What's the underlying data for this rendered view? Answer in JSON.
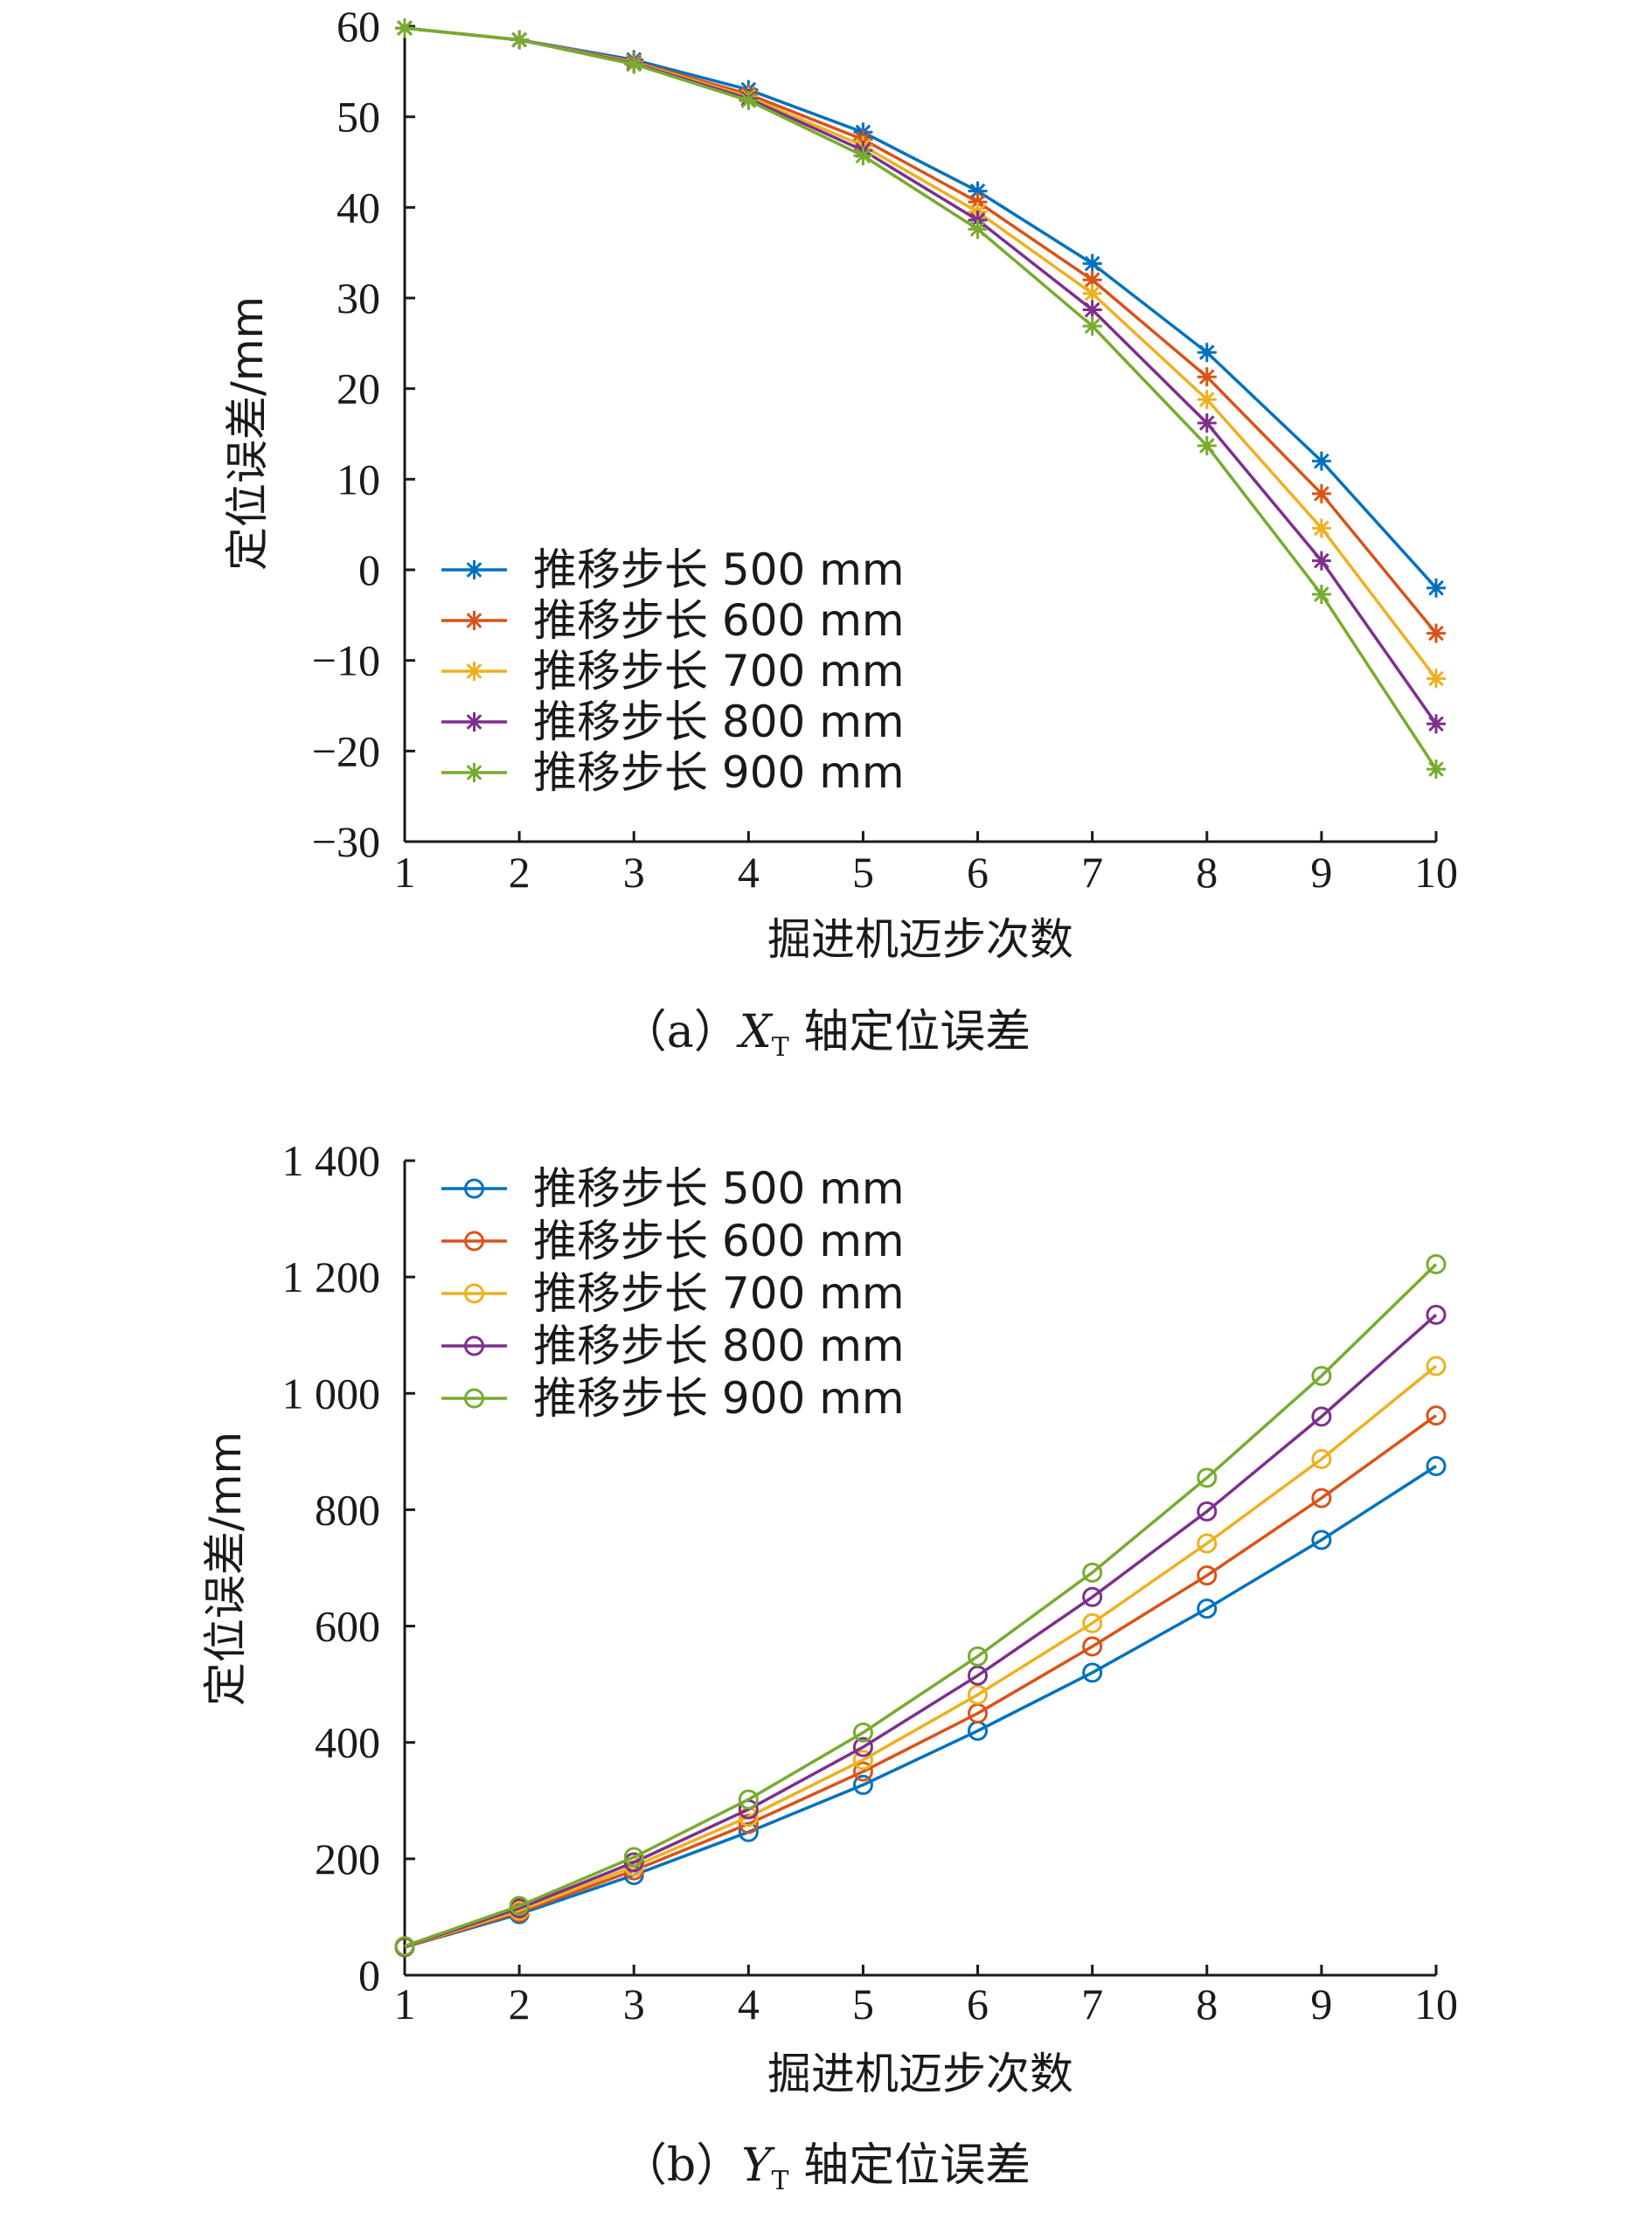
{
  "chart_data": [
    {
      "type": "line",
      "marker": "asterisk",
      "caption": {
        "prefix": "（a）",
        "var": "X",
        "sub": "T",
        "suffix": " 轴定位误差"
      },
      "xlabel": "掘进机迈步次数",
      "ylabel": "定位误差/mm",
      "xlim": [
        1,
        10
      ],
      "ylim": [
        -30,
        60
      ],
      "x_ticks": [
        "1",
        "2",
        "3",
        "4",
        "5",
        "6",
        "7",
        "8",
        "9",
        "10"
      ],
      "y_ticks": [
        "−30",
        "−20",
        "−10",
        "0",
        "10",
        "20",
        "30",
        "40",
        "50",
        "60"
      ],
      "legend_position": "lower-left",
      "x": [
        1,
        2,
        3,
        4,
        5,
        6,
        7,
        8,
        9,
        10
      ],
      "series": [
        {
          "name": "推移步长 500 mm",
          "color": "#0072BD",
          "values": [
            59.8,
            58.5,
            56.3,
            53.0,
            48.3,
            41.8,
            33.8,
            24.0,
            12.0,
            -2.0
          ]
        },
        {
          "name": "推移步长 600 mm",
          "color": "#D95319",
          "values": [
            59.8,
            58.5,
            56.1,
            52.5,
            47.5,
            40.6,
            32.0,
            21.3,
            8.4,
            -7.0
          ]
        },
        {
          "name": "推移步长 700 mm",
          "color": "#EDB120",
          "values": [
            59.8,
            58.5,
            56.0,
            52.2,
            46.8,
            39.5,
            30.5,
            18.8,
            4.6,
            -12.0
          ]
        },
        {
          "name": "推移步长 800 mm",
          "color": "#7E2F8E",
          "values": [
            59.8,
            58.5,
            55.9,
            52.0,
            46.3,
            38.6,
            28.7,
            16.2,
            1.0,
            -17.0
          ]
        },
        {
          "name": "推移步长 900 mm",
          "color": "#77AC30",
          "values": [
            59.8,
            58.5,
            55.8,
            51.8,
            45.7,
            37.6,
            26.9,
            13.7,
            -2.7,
            -22.0
          ]
        }
      ]
    },
    {
      "type": "line",
      "marker": "circle",
      "caption": {
        "prefix": "（b）",
        "var": "Y",
        "sub": "T",
        "suffix": " 轴定位误差"
      },
      "xlabel": "掘进机迈步次数",
      "ylabel": "定位误差/mm",
      "xlim": [
        1,
        10
      ],
      "ylim": [
        0,
        1400
      ],
      "x_ticks": [
        "1",
        "2",
        "3",
        "4",
        "5",
        "6",
        "7",
        "8",
        "9",
        "10"
      ],
      "y_ticks": [
        "0",
        "200",
        "400",
        "600",
        "800",
        "1 000",
        "1 200",
        "1 400"
      ],
      "legend_position": "upper-left",
      "x": [
        1,
        2,
        3,
        4,
        5,
        6,
        7,
        8,
        9,
        10
      ],
      "series": [
        {
          "name": "推移步长 500 mm",
          "color": "#0072BD",
          "values": [
            48,
            105,
            172,
            246,
            327,
            420,
            520,
            630,
            748,
            875
          ]
        },
        {
          "name": "推移步长 600 mm",
          "color": "#D95319",
          "values": [
            48,
            108,
            180,
            260,
            350,
            450,
            565,
            687,
            820,
            962
          ]
        },
        {
          "name": "推移步长 700 mm",
          "color": "#EDB120",
          "values": [
            49,
            111,
            187,
            272,
            370,
            482,
            605,
            742,
            887,
            1047
          ]
        },
        {
          "name": "推移步长 800 mm",
          "color": "#7E2F8E",
          "values": [
            49,
            115,
            194,
            285,
            392,
            515,
            650,
            797,
            960,
            1135
          ]
        },
        {
          "name": "推移步长 900 mm",
          "color": "#77AC30",
          "values": [
            50,
            119,
            203,
            302,
            417,
            548,
            692,
            855,
            1030,
            1222
          ]
        }
      ]
    }
  ]
}
